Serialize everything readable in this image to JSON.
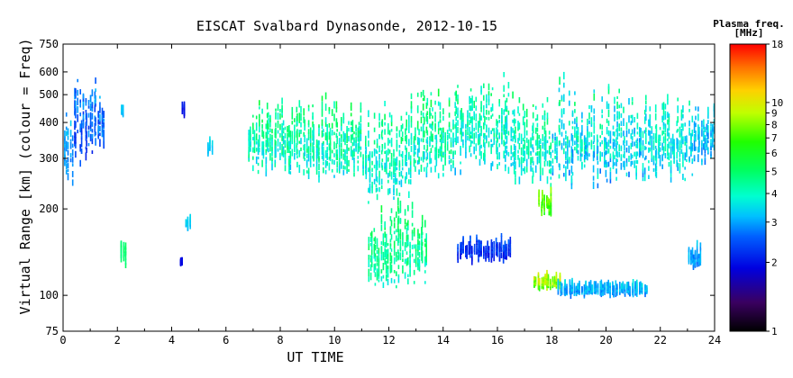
{
  "chart_data": {
    "type": "scatter",
    "title": "EISCAT Svalbard Dynasonde, 2012-10-15",
    "xlabel": "UT TIME",
    "ylabel": "Virtual Range [km] (colour = Freq)",
    "x_scale": "linear",
    "y_scale": "log",
    "xlim": [
      0,
      24
    ],
    "ylim": [
      75,
      750
    ],
    "x_ticks": [
      "0",
      "2",
      "4",
      "6",
      "8",
      "10",
      "12",
      "14",
      "16",
      "18",
      "20",
      "22",
      "24"
    ],
    "y_ticks": [
      {
        "value": 75,
        "label": "75"
      },
      {
        "value": 100,
        "label": "100"
      },
      {
        "value": 200,
        "label": "200"
      },
      {
        "value": 300,
        "label": "300"
      },
      {
        "value": 400,
        "label": "400"
      },
      {
        "value": 500,
        "label": "500"
      },
      {
        "value": 600,
        "label": "600"
      },
      {
        "value": 750,
        "label": "750"
      }
    ],
    "colorbar": {
      "title_line1": "Plasma freq.",
      "title_line2": "[MHz]",
      "scale": "log",
      "range": [
        1,
        18
      ],
      "ticks": [
        "1",
        "2",
        "3",
        "4",
        "5",
        "6",
        "7",
        "8",
        "9",
        "10",
        "18"
      ],
      "tick_values": [
        1,
        2,
        3,
        4,
        5,
        6,
        7,
        8,
        9,
        10,
        18
      ]
    },
    "grid": false,
    "echo_clusters": [
      {
        "t0": 0.0,
        "t1": 0.35,
        "r_low": 240,
        "r_high": 480,
        "f_low": 2.5,
        "f_high": 3.5
      },
      {
        "t0": 0.35,
        "t1": 0.7,
        "r_low": 280,
        "r_high": 600,
        "f_low": 2.0,
        "f_high": 3.2
      },
      {
        "t0": 0.7,
        "t1": 1.5,
        "r_low": 300,
        "r_high": 620,
        "f_low": 2.0,
        "f_high": 3.5
      },
      {
        "t0": 2.1,
        "t1": 2.2,
        "r_low": 420,
        "r_high": 460,
        "f_low": 3.0,
        "f_high": 3.4
      },
      {
        "t0": 2.1,
        "t1": 2.3,
        "r_low": 125,
        "r_high": 175,
        "f_low": 4.5,
        "f_high": 5.5
      },
      {
        "t0": 4.35,
        "t1": 4.5,
        "r_low": 410,
        "r_high": 480,
        "f_low": 1.8,
        "f_high": 2.2
      },
      {
        "t0": 4.3,
        "t1": 4.4,
        "r_low": 128,
        "r_high": 135,
        "f_low": 1.8,
        "f_high": 2.1
      },
      {
        "t0": 4.5,
        "t1": 4.7,
        "r_low": 170,
        "r_high": 190,
        "f_low": 3.0,
        "f_high": 3.6
      },
      {
        "t0": 5.3,
        "t1": 5.5,
        "r_low": 310,
        "r_high": 360,
        "f_low": 3.0,
        "f_high": 3.6
      },
      {
        "t0": 6.8,
        "t1": 9.0,
        "r_low": 260,
        "r_high": 480,
        "f_low": 3.0,
        "f_high": 6.0
      },
      {
        "t0": 9.0,
        "t1": 11.0,
        "r_low": 250,
        "r_high": 500,
        "f_low": 3.0,
        "f_high": 6.0
      },
      {
        "t0": 11.0,
        "t1": 12.8,
        "r_low": 210,
        "r_high": 480,
        "f_low": 3.0,
        "f_high": 5.5
      },
      {
        "t0": 11.2,
        "t1": 13.4,
        "r_low": 105,
        "r_high": 220,
        "f_low": 3.5,
        "f_high": 6.0
      },
      {
        "t0": 12.8,
        "t1": 14.3,
        "r_low": 250,
        "r_high": 530,
        "f_low": 3.0,
        "f_high": 6.0
      },
      {
        "t0": 14.3,
        "t1": 16.5,
        "r_low": 260,
        "r_high": 600,
        "f_low": 3.0,
        "f_high": 5.5
      },
      {
        "t0": 14.5,
        "t1": 16.5,
        "r_low": 130,
        "r_high": 165,
        "f_low": 1.8,
        "f_high": 2.8
      },
      {
        "t0": 16.5,
        "t1": 18.0,
        "r_low": 230,
        "r_high": 530,
        "f_low": 3.0,
        "f_high": 5.5
      },
      {
        "t0": 17.3,
        "t1": 18.3,
        "r_low": 105,
        "r_high": 120,
        "f_low": 6.0,
        "f_high": 12.0
      },
      {
        "t0": 17.5,
        "t1": 18.0,
        "r_low": 190,
        "r_high": 240,
        "f_low": 6.0,
        "f_high": 9.0
      },
      {
        "t0": 18.0,
        "t1": 19.8,
        "r_low": 225,
        "r_high": 600,
        "f_low": 2.5,
        "f_high": 5.5
      },
      {
        "t0": 18.2,
        "t1": 21.5,
        "r_low": 100,
        "r_high": 112,
        "f_low": 2.5,
        "f_high": 3.8
      },
      {
        "t0": 19.8,
        "t1": 21.5,
        "r_low": 230,
        "r_high": 560,
        "f_low": 2.5,
        "f_high": 5.0
      },
      {
        "t0": 21.5,
        "t1": 23.2,
        "r_low": 240,
        "r_high": 530,
        "f_low": 2.8,
        "f_high": 5.0
      },
      {
        "t0": 23.0,
        "t1": 23.5,
        "r_low": 125,
        "r_high": 155,
        "f_low": 2.5,
        "f_high": 3.5
      },
      {
        "t0": 23.2,
        "t1": 24.0,
        "r_low": 280,
        "r_high": 480,
        "f_low": 2.5,
        "f_high": 4.0
      }
    ]
  }
}
